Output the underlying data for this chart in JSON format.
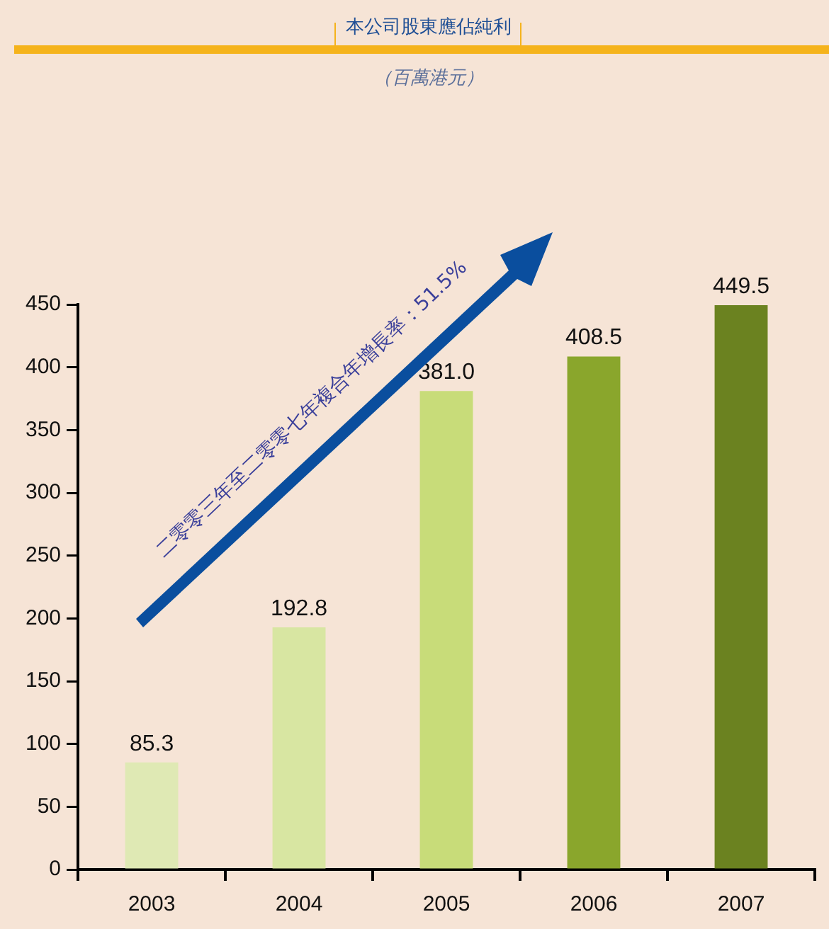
{
  "chart_data": {
    "type": "bar",
    "title": "本公司股東應佔純利",
    "subtitle": "（百萬港元）",
    "categories": [
      "2003",
      "2004",
      "2005",
      "2006",
      "2007"
    ],
    "values": [
      85.3,
      192.8,
      381.0,
      408.5,
      449.5
    ],
    "colors": [
      "#dfe9b4",
      "#d8e6a2",
      "#c8dc79",
      "#8aa62c",
      "#6b8220"
    ],
    "value_labels": [
      "85.3",
      "192.8",
      "381.0",
      "408.5",
      "449.5"
    ],
    "ylim": [
      0,
      450
    ],
    "yticks": [
      0,
      50,
      100,
      150,
      200,
      250,
      300,
      350,
      400,
      450
    ],
    "grid": false,
    "legend": false,
    "annotations": [
      "二零零三年至二零零七年複合年增長率：51.5%"
    ]
  }
}
